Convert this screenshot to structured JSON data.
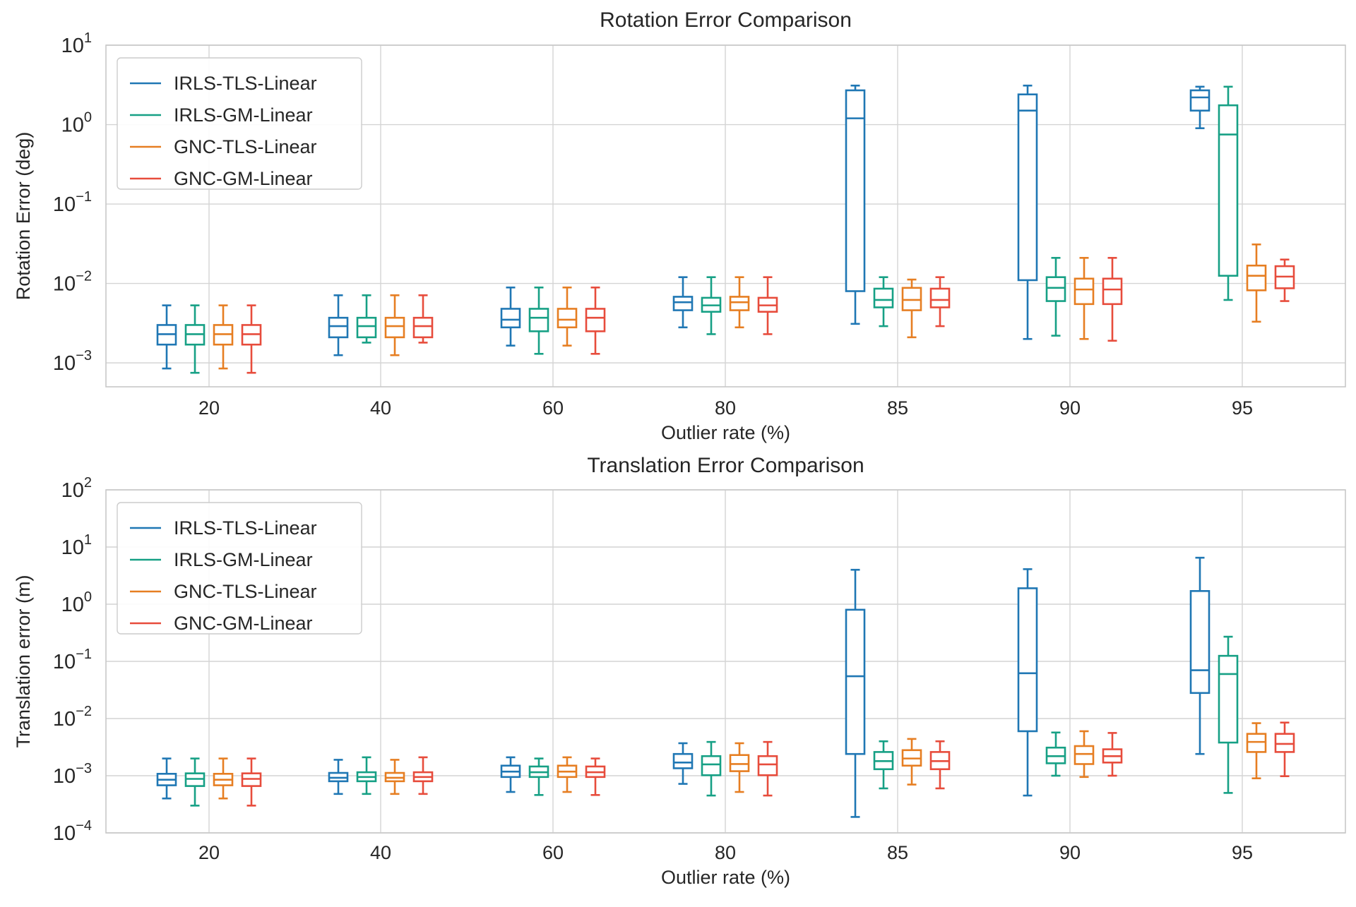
{
  "figure": {
    "series_colors": [
      "#1f77b4",
      "#16a085",
      "#e67e22",
      "#e74c3c"
    ]
  },
  "chart_data": [
    {
      "type": "box",
      "title": "Rotation Error Comparison",
      "xlabel": "Outlier rate (%)",
      "ylabel": "Rotation Error (deg)",
      "yscale": "log",
      "ylim": [
        0.0005,
        10
      ],
      "yticks": [
        {
          "value": 0.001,
          "base": "10",
          "exp": "−3"
        },
        {
          "value": 0.01,
          "base": "10",
          "exp": "−2"
        },
        {
          "value": 0.1,
          "base": "10",
          "exp": "−1"
        },
        {
          "value": 1,
          "base": "10",
          "exp": "0"
        },
        {
          "value": 10,
          "base": "10",
          "exp": "1"
        }
      ],
      "categories": [
        "20",
        "40",
        "60",
        "80",
        "85",
        "90",
        "95"
      ],
      "grid": true,
      "legend": "upper-left",
      "series": [
        {
          "name": "IRLS-TLS-Linear",
          "color": "#1f77b4",
          "boxes": [
            {
              "min": 0.00085,
              "q1": 0.0017,
              "median": 0.0023,
              "q3": 0.003,
              "max": 0.0053
            },
            {
              "min": 0.00125,
              "q1": 0.0021,
              "median": 0.0029,
              "q3": 0.0037,
              "max": 0.0071
            },
            {
              "min": 0.00165,
              "q1": 0.0028,
              "median": 0.0035,
              "q3": 0.0048,
              "max": 0.0089
            },
            {
              "min": 0.0028,
              "q1": 0.0046,
              "median": 0.0058,
              "q3": 0.0068,
              "max": 0.012
            },
            {
              "min": 0.0031,
              "q1": 0.008,
              "median": 1.2,
              "q3": 2.7,
              "max": 3.1
            },
            {
              "min": 0.002,
              "q1": 0.011,
              "median": 1.5,
              "q3": 2.4,
              "max": 3.1
            },
            {
              "min": 0.9,
              "q1": 1.5,
              "median": 2.2,
              "q3": 2.7,
              "max": 3.0
            }
          ]
        },
        {
          "name": "IRLS-GM-Linear",
          "color": "#16a085",
          "boxes": [
            {
              "min": 0.00075,
              "q1": 0.0017,
              "median": 0.0023,
              "q3": 0.003,
              "max": 0.0053
            },
            {
              "min": 0.0018,
              "q1": 0.0021,
              "median": 0.0029,
              "q3": 0.0037,
              "max": 0.0071
            },
            {
              "min": 0.0013,
              "q1": 0.0025,
              "median": 0.0037,
              "q3": 0.0048,
              "max": 0.0089
            },
            {
              "min": 0.0023,
              "q1": 0.0044,
              "median": 0.0053,
              "q3": 0.0066,
              "max": 0.012
            },
            {
              "min": 0.0029,
              "q1": 0.005,
              "median": 0.0062,
              "q3": 0.0086,
              "max": 0.012
            },
            {
              "min": 0.0022,
              "q1": 0.006,
              "median": 0.0088,
              "q3": 0.012,
              "max": 0.021
            },
            {
              "min": 0.0062,
              "q1": 0.0125,
              "median": 0.75,
              "q3": 1.75,
              "max": 3.0
            }
          ]
        },
        {
          "name": "GNC-TLS-Linear",
          "color": "#e67e22",
          "boxes": [
            {
              "min": 0.00085,
              "q1": 0.0017,
              "median": 0.0023,
              "q3": 0.003,
              "max": 0.0053
            },
            {
              "min": 0.00125,
              "q1": 0.0021,
              "median": 0.0029,
              "q3": 0.0037,
              "max": 0.0071
            },
            {
              "min": 0.00165,
              "q1": 0.0028,
              "median": 0.0035,
              "q3": 0.0048,
              "max": 0.0089
            },
            {
              "min": 0.0028,
              "q1": 0.0046,
              "median": 0.0058,
              "q3": 0.0068,
              "max": 0.012
            },
            {
              "min": 0.0021,
              "q1": 0.0046,
              "median": 0.0062,
              "q3": 0.0088,
              "max": 0.0112
            },
            {
              "min": 0.002,
              "q1": 0.0055,
              "median": 0.0084,
              "q3": 0.0115,
              "max": 0.021
            },
            {
              "min": 0.0033,
              "q1": 0.0082,
              "median": 0.0125,
              "q3": 0.0168,
              "max": 0.031
            }
          ]
        },
        {
          "name": "GNC-GM-Linear",
          "color": "#e74c3c",
          "boxes": [
            {
              "min": 0.00075,
              "q1": 0.0017,
              "median": 0.0023,
              "q3": 0.003,
              "max": 0.0053
            },
            {
              "min": 0.0018,
              "q1": 0.0021,
              "median": 0.0029,
              "q3": 0.0037,
              "max": 0.0071
            },
            {
              "min": 0.0013,
              "q1": 0.0025,
              "median": 0.0037,
              "q3": 0.0048,
              "max": 0.0089
            },
            {
              "min": 0.0023,
              "q1": 0.0044,
              "median": 0.0053,
              "q3": 0.0066,
              "max": 0.012
            },
            {
              "min": 0.0029,
              "q1": 0.005,
              "median": 0.0062,
              "q3": 0.0086,
              "max": 0.012
            },
            {
              "min": 0.0019,
              "q1": 0.0055,
              "median": 0.0084,
              "q3": 0.0115,
              "max": 0.021
            },
            {
              "min": 0.006,
              "q1": 0.0087,
              "median": 0.0122,
              "q3": 0.0165,
              "max": 0.02
            }
          ]
        }
      ]
    },
    {
      "type": "box",
      "title": "Translation Error Comparison",
      "xlabel": "Outlier rate (%)",
      "ylabel": "Translation error (m)",
      "yscale": "log",
      "ylim": [
        0.0001,
        100
      ],
      "yticks": [
        {
          "value": 0.0001,
          "base": "10",
          "exp": "−4"
        },
        {
          "value": 0.001,
          "base": "10",
          "exp": "−3"
        },
        {
          "value": 0.01,
          "base": "10",
          "exp": "−2"
        },
        {
          "value": 0.1,
          "base": "10",
          "exp": "−1"
        },
        {
          "value": 1,
          "base": "10",
          "exp": "0"
        },
        {
          "value": 10,
          "base": "10",
          "exp": "1"
        },
        {
          "value": 100,
          "base": "10",
          "exp": "2"
        }
      ],
      "categories": [
        "20",
        "40",
        "60",
        "80",
        "85",
        "90",
        "95"
      ],
      "grid": true,
      "legend": "upper-left",
      "series": [
        {
          "name": "IRLS-TLS-Linear",
          "color": "#1f77b4",
          "boxes": [
            {
              "min": 0.0004,
              "q1": 0.00068,
              "median": 0.00085,
              "q3": 0.00108,
              "max": 0.002
            },
            {
              "min": 0.00048,
              "q1": 0.0008,
              "median": 0.00092,
              "q3": 0.00112,
              "max": 0.0019
            },
            {
              "min": 0.00052,
              "q1": 0.00095,
              "median": 0.00118,
              "q3": 0.0015,
              "max": 0.0021
            },
            {
              "min": 0.00072,
              "q1": 0.00135,
              "median": 0.0017,
              "q3": 0.0024,
              "max": 0.0037
            },
            {
              "min": 0.00019,
              "q1": 0.0024,
              "median": 0.055,
              "q3": 0.8,
              "max": 4.0
            },
            {
              "min": 0.00045,
              "q1": 0.006,
              "median": 0.062,
              "q3": 1.9,
              "max": 4.1
            },
            {
              "min": 0.0024,
              "q1": 0.028,
              "median": 0.07,
              "q3": 1.7,
              "max": 6.5
            }
          ]
        },
        {
          "name": "IRLS-GM-Linear",
          "color": "#16a085",
          "boxes": [
            {
              "min": 0.0003,
              "q1": 0.00066,
              "median": 0.00088,
              "q3": 0.0011,
              "max": 0.002
            },
            {
              "min": 0.00048,
              "q1": 0.0008,
              "median": 0.00095,
              "q3": 0.00115,
              "max": 0.0021
            },
            {
              "min": 0.00046,
              "q1": 0.00095,
              "median": 0.00115,
              "q3": 0.00145,
              "max": 0.002
            },
            {
              "min": 0.00045,
              "q1": 0.00102,
              "median": 0.00158,
              "q3": 0.0022,
              "max": 0.0039
            },
            {
              "min": 0.0006,
              "q1": 0.0013,
              "median": 0.0018,
              "q3": 0.0026,
              "max": 0.004
            },
            {
              "min": 0.001,
              "q1": 0.00165,
              "median": 0.0022,
              "q3": 0.0031,
              "max": 0.0057
            },
            {
              "min": 0.0005,
              "q1": 0.0038,
              "median": 0.06,
              "q3": 0.125,
              "max": 0.27
            }
          ]
        },
        {
          "name": "GNC-TLS-Linear",
          "color": "#e67e22",
          "boxes": [
            {
              "min": 0.0004,
              "q1": 0.00068,
              "median": 0.00085,
              "q3": 0.00108,
              "max": 0.002
            },
            {
              "min": 0.00048,
              "q1": 0.0008,
              "median": 0.00092,
              "q3": 0.00112,
              "max": 0.0019
            },
            {
              "min": 0.00052,
              "q1": 0.00095,
              "median": 0.00118,
              "q3": 0.0015,
              "max": 0.0021
            },
            {
              "min": 0.00052,
              "q1": 0.0012,
              "median": 0.0016,
              "q3": 0.0023,
              "max": 0.0037
            },
            {
              "min": 0.0007,
              "q1": 0.0015,
              "median": 0.002,
              "q3": 0.0028,
              "max": 0.0044
            },
            {
              "min": 0.00095,
              "q1": 0.0016,
              "median": 0.0024,
              "q3": 0.0033,
              "max": 0.006
            },
            {
              "min": 0.0009,
              "q1": 0.0026,
              "median": 0.0039,
              "q3": 0.0054,
              "max": 0.0083
            }
          ]
        },
        {
          "name": "GNC-GM-Linear",
          "color": "#e74c3c",
          "boxes": [
            {
              "min": 0.0003,
              "q1": 0.00066,
              "median": 0.00088,
              "q3": 0.0011,
              "max": 0.002
            },
            {
              "min": 0.00048,
              "q1": 0.0008,
              "median": 0.00095,
              "q3": 0.00115,
              "max": 0.0021
            },
            {
              "min": 0.00046,
              "q1": 0.00095,
              "median": 0.00115,
              "q3": 0.00145,
              "max": 0.002
            },
            {
              "min": 0.00045,
              "q1": 0.00102,
              "median": 0.00158,
              "q3": 0.0022,
              "max": 0.0039
            },
            {
              "min": 0.0006,
              "q1": 0.0013,
              "median": 0.0018,
              "q3": 0.0026,
              "max": 0.004
            },
            {
              "min": 0.001,
              "q1": 0.0017,
              "median": 0.0022,
              "q3": 0.0029,
              "max": 0.0056
            },
            {
              "min": 0.00098,
              "q1": 0.0026,
              "median": 0.0036,
              "q3": 0.0054,
              "max": 0.0085
            }
          ]
        }
      ]
    }
  ]
}
